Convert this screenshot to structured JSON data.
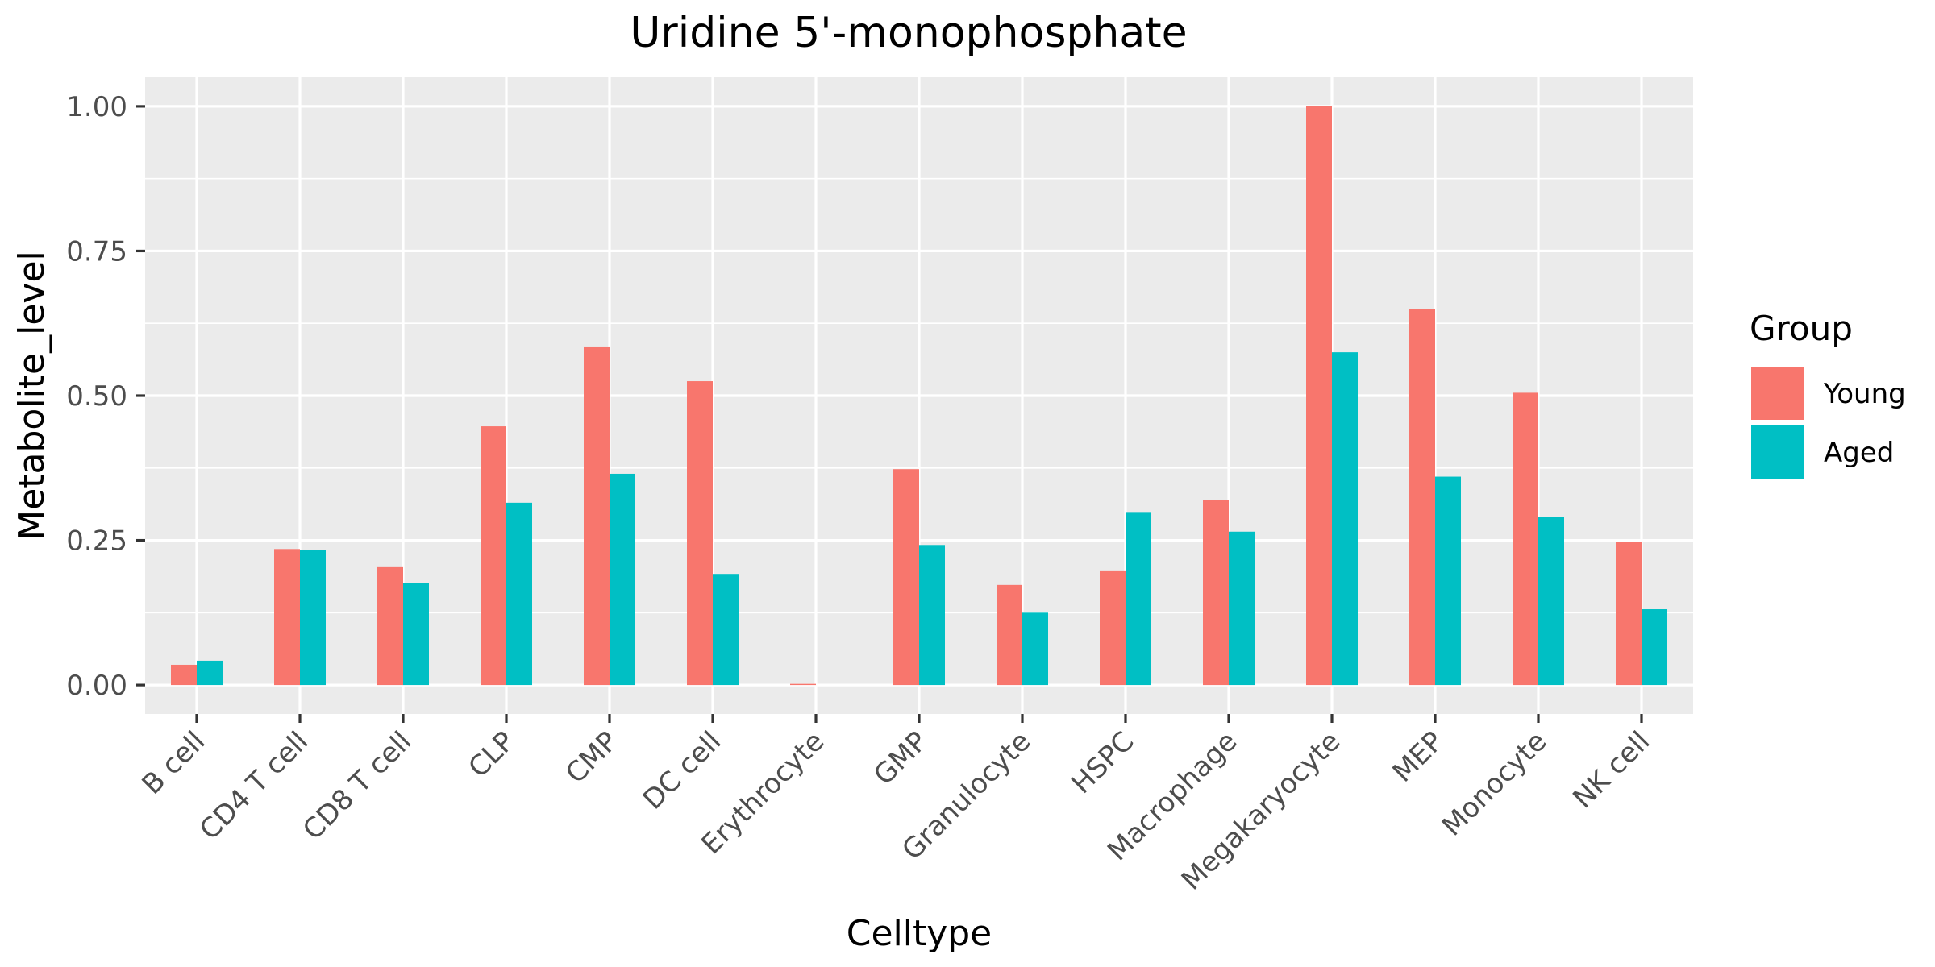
{
  "chart_data": {
    "type": "bar",
    "title": "Uridine 5'-monophosphate",
    "xlabel": "Celltype",
    "ylabel": "Metabolite_level",
    "ylim": [
      -0.05,
      1.05
    ],
    "yticks": [
      0,
      0.25,
      0.5,
      0.75,
      1.0
    ],
    "ytick_labels": [
      "0.00",
      "0.25",
      "0.50",
      "0.75",
      "1.00"
    ],
    "grid": true,
    "legend": {
      "title": "Group",
      "placement": "right"
    },
    "categories": [
      "B cell",
      "CD4 T cell",
      "CD8 T cell",
      "CLP",
      "CMP",
      "DC cell",
      "Erythrocyte",
      "GMP",
      "Granulocyte",
      "HSPC",
      "Macrophage",
      "Megakaryocyte",
      "MEP",
      "Monocyte",
      "NK cell"
    ],
    "series": [
      {
        "name": "Young",
        "color": "#F8766D",
        "values": [
          0.035,
          0.235,
          0.205,
          0.447,
          0.585,
          0.525,
          0.002,
          0.373,
          0.173,
          0.198,
          0.32,
          1.0,
          0.65,
          0.505,
          0.247
        ]
      },
      {
        "name": "Aged",
        "color": "#00BFC4",
        "values": [
          0.042,
          0.233,
          0.176,
          0.315,
          0.365,
          0.192,
          0.0,
          0.242,
          0.125,
          0.299,
          0.265,
          0.575,
          0.36,
          0.29,
          0.131
        ]
      }
    ]
  }
}
